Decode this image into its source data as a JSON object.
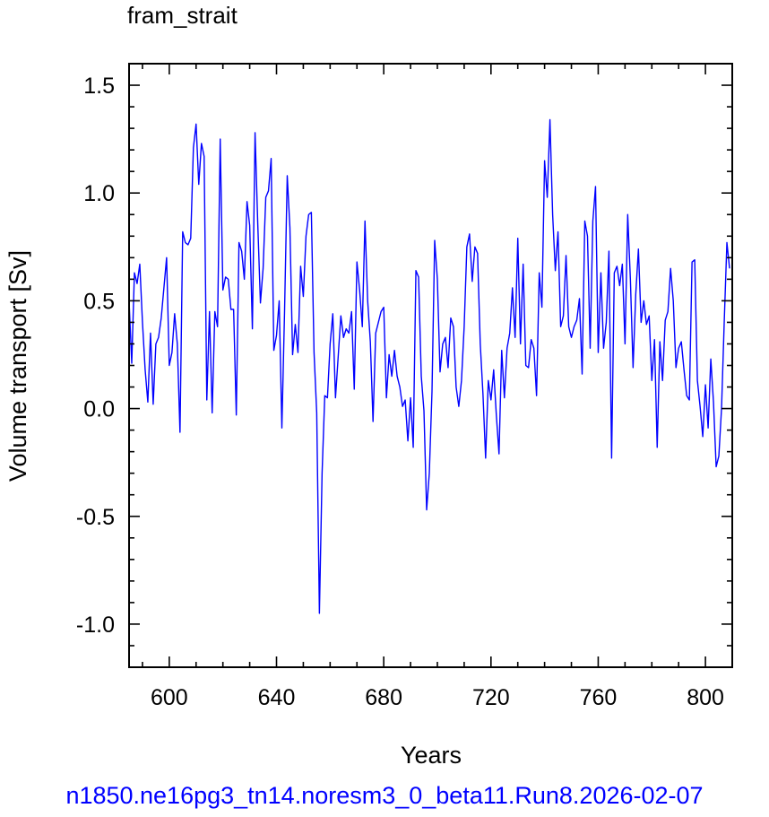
{
  "title": "fram_strait",
  "footer": "n1850.ne16pg3_tn14.noresm3_0_beta11.Run8.2026-02-07",
  "line_color": "#0000ff",
  "chart_data": {
    "type": "line",
    "title": "fram_strait",
    "xlabel": "Years",
    "ylabel": "Volume transport [Sv]",
    "xlim": [
      585,
      810
    ],
    "ylim": [
      -1.2,
      1.6
    ],
    "xticks": [
      600,
      640,
      680,
      720,
      760,
      800
    ],
    "xtick_labels": [
      "600",
      "640",
      "680",
      "720",
      "760",
      "800"
    ],
    "yticks": [
      -1.0,
      -0.5,
      0.0,
      0.5,
      1.0,
      1.5
    ],
    "ytick_labels": [
      "-1.0",
      "-0.5",
      "0.0",
      "0.5",
      "1.0",
      "1.5"
    ],
    "grid": false,
    "series": [
      {
        "x_start": 585,
        "x_step": 1,
        "values": [
          0.5,
          0.21,
          0.63,
          0.58,
          0.67,
          0.4,
          0.18,
          0.03,
          0.35,
          0.02,
          0.3,
          0.33,
          0.42,
          0.56,
          0.7,
          0.2,
          0.26,
          0.44,
          0.3,
          -0.11,
          0.82,
          0.77,
          0.76,
          0.79,
          1.21,
          1.32,
          1.04,
          1.23,
          1.17,
          0.04,
          0.45,
          -0.02,
          0.45,
          0.38,
          1.25,
          0.55,
          0.61,
          0.6,
          0.46,
          0.46,
          -0.03,
          0.77,
          0.73,
          0.6,
          0.96,
          0.85,
          0.37,
          1.28,
          0.86,
          0.49,
          0.65,
          0.98,
          1.01,
          1.16,
          0.27,
          0.34,
          0.5,
          -0.09,
          0.45,
          1.08,
          0.84,
          0.25,
          0.39,
          0.26,
          0.66,
          0.52,
          0.8,
          0.9,
          0.91,
          0.26,
          -0.02,
          -0.95,
          -0.3,
          0.06,
          0.05,
          0.3,
          0.44,
          0.05,
          0.24,
          0.43,
          0.33,
          0.37,
          0.35,
          0.45,
          0.09,
          0.68,
          0.55,
          0.38,
          0.87,
          0.5,
          0.31,
          -0.06,
          0.35,
          0.4,
          0.45,
          0.47,
          0.05,
          0.25,
          0.15,
          0.27,
          0.15,
          0.1,
          0.01,
          0.04,
          -0.15,
          0.05,
          -0.18,
          0.64,
          0.61,
          0.15,
          -0.01,
          -0.47,
          -0.3,
          0.08,
          0.78,
          0.6,
          0.17,
          0.3,
          0.33,
          0.19,
          0.42,
          0.38,
          0.1,
          0.01,
          0.13,
          0.38,
          0.75,
          0.81,
          0.59,
          0.75,
          0.72,
          0.3,
          0.07,
          -0.23,
          0.13,
          0.04,
          0.18,
          -0.03,
          -0.21,
          0.27,
          0.05,
          0.28,
          0.35,
          0.56,
          0.33,
          0.79,
          0.3,
          0.67,
          0.2,
          0.19,
          0.32,
          0.28,
          0.06,
          0.63,
          0.47,
          1.15,
          0.98,
          1.34,
          0.9,
          0.64,
          0.82,
          0.38,
          0.43,
          0.71,
          0.38,
          0.33,
          0.38,
          0.41,
          0.51,
          0.16,
          0.87,
          0.8,
          0.28,
          0.87,
          1.03,
          0.26,
          0.63,
          0.28,
          0.4,
          0.73,
          -0.23,
          0.63,
          0.66,
          0.57,
          0.67,
          0.3,
          0.9,
          0.6,
          0.19,
          0.53,
          0.74,
          0.4,
          0.5,
          0.39,
          0.43,
          0.13,
          0.32,
          -0.18,
          0.31,
          0.13,
          0.41,
          0.45,
          0.65,
          0.5,
          0.19,
          0.28,
          0.31,
          0.18,
          0.06,
          0.04,
          0.68,
          0.69,
          0.13,
          0.01,
          -0.13,
          0.11,
          -0.09,
          0.23,
          0.03,
          -0.27,
          -0.22,
          0.0,
          0.4,
          0.77,
          0.65
        ]
      }
    ]
  }
}
